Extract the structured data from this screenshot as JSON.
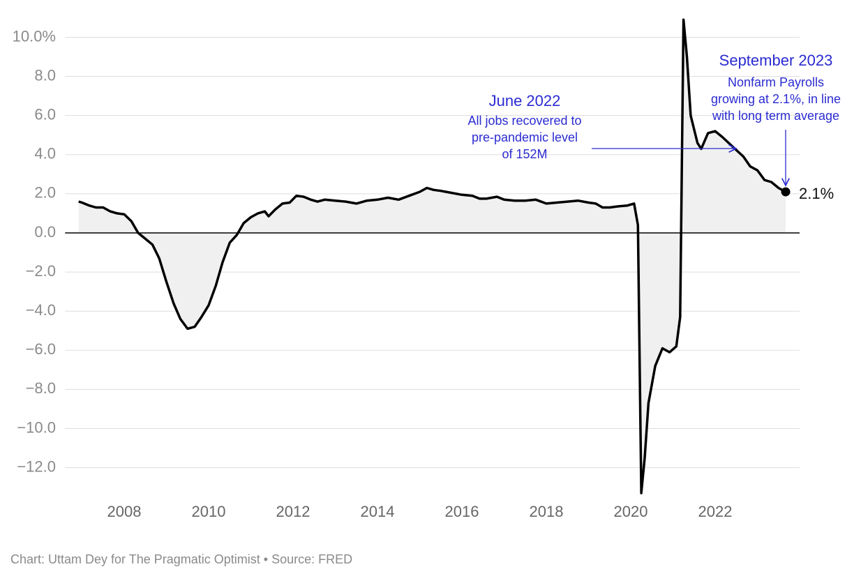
{
  "chart_data": {
    "type": "line",
    "x": [
      2006.92,
      2007.0,
      2007.17,
      2007.33,
      2007.5,
      2007.67,
      2007.83,
      2008.0,
      2008.17,
      2008.33,
      2008.5,
      2008.67,
      2008.83,
      2009.0,
      2009.17,
      2009.33,
      2009.5,
      2009.67,
      2009.83,
      2010.0,
      2010.17,
      2010.33,
      2010.5,
      2010.67,
      2010.83,
      2011.0,
      2011.17,
      2011.33,
      2011.42,
      2011.58,
      2011.75,
      2011.92,
      2012.08,
      2012.25,
      2012.42,
      2012.58,
      2012.75,
      2013.0,
      2013.25,
      2013.5,
      2013.75,
      2014.0,
      2014.25,
      2014.5,
      2014.75,
      2015.0,
      2015.17,
      2015.33,
      2015.5,
      2015.75,
      2016.0,
      2016.25,
      2016.42,
      2016.58,
      2016.83,
      2017.0,
      2017.25,
      2017.5,
      2017.75,
      2018.0,
      2018.25,
      2018.5,
      2018.75,
      2019.0,
      2019.17,
      2019.33,
      2019.5,
      2019.67,
      2019.92,
      2020.08,
      2020.17,
      2020.25,
      2020.33,
      2020.42,
      2020.58,
      2020.75,
      2020.92,
      2021.08,
      2021.17,
      2021.25,
      2021.33,
      2021.42,
      2021.58,
      2021.67,
      2021.83,
      2022.0,
      2022.17,
      2022.42,
      2022.67,
      2022.83,
      2023.0,
      2023.17,
      2023.33,
      2023.5,
      2023.67
    ],
    "series": [
      {
        "color": "#000000",
        "fill": "#f0f0f0",
        "values": [
          1.6,
          1.55,
          1.4,
          1.3,
          1.3,
          1.1,
          1.0,
          0.95,
          0.6,
          0.0,
          -0.3,
          -0.6,
          -1.3,
          -2.5,
          -3.6,
          -4.4,
          -4.9,
          -4.8,
          -4.3,
          -3.7,
          -2.7,
          -1.5,
          -0.5,
          -0.1,
          0.5,
          0.8,
          1.0,
          1.1,
          0.85,
          1.2,
          1.5,
          1.55,
          1.9,
          1.85,
          1.7,
          1.6,
          1.7,
          1.65,
          1.6,
          1.5,
          1.65,
          1.7,
          1.8,
          1.7,
          1.9,
          2.1,
          2.3,
          2.2,
          2.15,
          2.05,
          1.95,
          1.9,
          1.75,
          1.75,
          1.85,
          1.7,
          1.65,
          1.65,
          1.7,
          1.5,
          1.55,
          1.6,
          1.65,
          1.55,
          1.5,
          1.3,
          1.3,
          1.35,
          1.4,
          1.5,
          0.4,
          -13.3,
          -11.5,
          -8.7,
          -6.8,
          -5.9,
          -6.1,
          -5.8,
          -4.3,
          10.9,
          9.0,
          6.0,
          4.6,
          4.3,
          5.1,
          5.2,
          4.9,
          4.4,
          3.9,
          3.4,
          3.2,
          2.7,
          2.6,
          2.3,
          2.1
        ],
        "last_label": "2.1%"
      }
    ],
    "xlim": [
      2006.6,
      2024.0
    ],
    "xticks": [
      2008,
      2010,
      2012,
      2014,
      2016,
      2018,
      2020,
      2022
    ],
    "ylim": [
      -13.5,
      11.0
    ],
    "yticks": [
      {
        "value": 10,
        "label": "10.0%"
      },
      {
        "value": 8,
        "label": "8.0"
      },
      {
        "value": 6,
        "label": "6.0"
      },
      {
        "value": 4,
        "label": "4.0"
      },
      {
        "value": 2,
        "label": "2.0"
      },
      {
        "value": 0,
        "label": "0.0"
      },
      {
        "value": -2,
        "label": "−2.0"
      },
      {
        "value": -4,
        "label": "−4.0"
      },
      {
        "value": -6,
        "label": "−6.0"
      },
      {
        "value": -8,
        "label": "−8.0"
      },
      {
        "value": -10,
        "label": "−10.0"
      },
      {
        "value": -12,
        "label": "−12.0"
      }
    ],
    "grid": true,
    "annotations": [
      {
        "title": "June 2022",
        "lines": [
          "All jobs recovered to",
          "pre-pandemic level",
          "of 152M"
        ]
      },
      {
        "title": "September 2023",
        "lines": [
          "Nonfarm Payrolls",
          "growing at 2.1%, in line",
          "with long term average"
        ]
      }
    ],
    "source": "Chart: Uttam Dey for The Pragmatic Optimist • Source: FRED"
  }
}
